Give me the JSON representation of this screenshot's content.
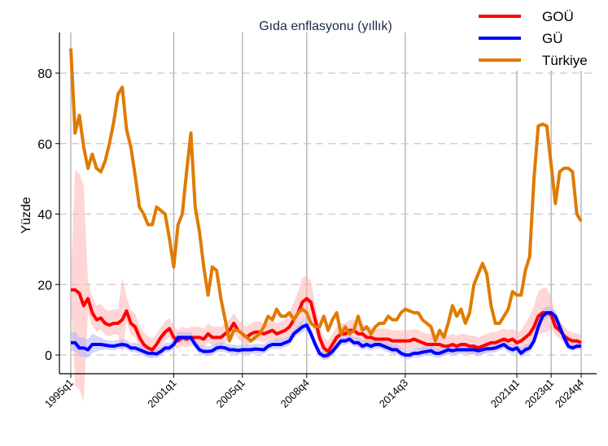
{
  "chart_data": {
    "type": "line",
    "title": "Gıda enflasyonu (yıllık)",
    "ylabel": "Yüzde",
    "xlabel": "",
    "x_start": "1995q1",
    "x_end": "2024q4",
    "n_quarters": 120,
    "ylim": [
      -6,
      92
    ],
    "yticks": [
      0,
      20,
      40,
      60,
      80
    ],
    "grid": "horizontal dashed",
    "legend_position": "top-right",
    "xticks": [
      {
        "label": "1995q1",
        "index": 0
      },
      {
        "label": "2001q1",
        "index": 24
      },
      {
        "label": "2005q1",
        "index": 40
      },
      {
        "label": "2008q4",
        "index": 55
      },
      {
        "label": "2014q3",
        "index": 78
      },
      {
        "label": "2021q1",
        "index": 104
      },
      {
        "label": "2023q1",
        "index": 112
      },
      {
        "label": "2024q4",
        "index": 119
      }
    ],
    "series": [
      {
        "name": "GOÜ",
        "color": "#ff0000",
        "band_color": "#ffb3b3",
        "values": [
          18.5,
          18.5,
          17.5,
          14,
          16,
          12,
          10,
          10.5,
          9,
          8.5,
          9,
          9,
          10,
          12.5,
          9,
          8,
          5,
          3,
          2,
          1.5,
          3,
          5,
          6.5,
          7.5,
          5,
          4,
          5,
          4.5,
          5,
          5,
          5,
          4.5,
          6,
          5,
          5,
          5,
          6,
          7,
          9,
          7,
          6,
          5,
          6,
          6.5,
          6.5,
          6,
          6.5,
          7,
          6,
          6.5,
          7,
          8,
          10,
          12,
          15,
          16,
          15,
          10,
          5,
          2,
          1,
          3,
          5,
          6,
          6,
          7,
          7,
          6,
          6,
          5,
          5,
          4.5,
          4.5,
          4.5,
          4.5,
          4,
          4,
          4,
          4,
          4,
          4.5,
          4,
          3.5,
          3,
          3,
          3,
          3,
          2.5,
          2.5,
          3,
          2.5,
          3,
          3,
          2.5,
          2.5,
          2,
          2.5,
          3,
          3.5,
          3.5,
          4,
          4.5,
          4,
          4.5,
          3.5,
          4,
          5,
          6,
          8,
          11,
          12,
          12,
          11.5,
          8,
          7,
          5.5,
          4.5,
          4,
          4,
          3.5
        ],
        "band_spread_knots": [
          [
            0,
            3
          ],
          [
            1,
            34
          ],
          [
            3,
            34
          ],
          [
            4,
            5
          ],
          [
            6,
            4
          ],
          [
            11,
            4
          ],
          [
            12,
            12
          ],
          [
            13,
            4
          ],
          [
            20,
            3
          ],
          [
            50,
            3
          ],
          [
            54,
            7
          ],
          [
            56,
            6
          ],
          [
            58,
            3
          ],
          [
            105,
            3
          ],
          [
            109,
            7
          ],
          [
            111,
            7
          ],
          [
            113,
            3
          ],
          [
            119,
            2
          ]
        ]
      },
      {
        "name": "GÜ",
        "color": "#0000ff",
        "band_color": "#b3b3ff",
        "values": [
          3.5,
          3.5,
          2,
          2,
          1.5,
          3,
          3,
          3,
          2.8,
          2.6,
          2.5,
          2.8,
          3,
          2.8,
          2,
          2,
          1.5,
          1,
          0.5,
          0.5,
          0.3,
          1,
          2,
          2,
          3,
          5,
          5,
          5,
          5,
          3,
          1.5,
          1,
          1,
          1.2,
          2,
          2.2,
          2,
          1.5,
          1.5,
          1.3,
          1.5,
          1.5,
          1.5,
          1.7,
          1.6,
          1.5,
          2.5,
          3,
          3,
          3,
          3.5,
          4,
          6,
          7,
          8,
          8.5,
          6,
          3,
          0.5,
          -0.3,
          0,
          1,
          2.5,
          4,
          4,
          4.5,
          3.5,
          3.5,
          2.5,
          3,
          2.5,
          3,
          3,
          2.5,
          2,
          1.5,
          1.5,
          0.5,
          0,
          0,
          0.5,
          0.5,
          0.8,
          1,
          1.2,
          0.5,
          0.5,
          1,
          1.5,
          1.2,
          1.5,
          1.5,
          1.5,
          1.5,
          1.5,
          1.2,
          1.5,
          1.8,
          1.8,
          2,
          2.5,
          3,
          2,
          1.5,
          2,
          0.5,
          1.5,
          2,
          4,
          8,
          11,
          12,
          12,
          11,
          8,
          5,
          2.5,
          2,
          2.5,
          2.5
        ],
        "band_spread_knots": [
          [
            0,
            3
          ],
          [
            5,
            3
          ],
          [
            8,
            1.5
          ],
          [
            52,
            1.5
          ],
          [
            55,
            2
          ],
          [
            57,
            1.5
          ],
          [
            107,
            1.5
          ],
          [
            110,
            2
          ],
          [
            113,
            1.5
          ],
          [
            119,
            1
          ]
        ]
      },
      {
        "name": "Türkiye",
        "color": "#e07b00",
        "values": [
          87,
          63,
          68,
          59,
          53,
          57,
          53,
          52,
          55,
          60,
          66,
          74,
          76,
          64,
          59,
          51,
          42,
          40,
          37,
          37,
          42,
          41,
          40,
          33,
          25,
          37,
          40,
          52,
          63,
          42,
          35,
          25,
          17,
          25,
          24,
          16,
          10,
          4,
          7,
          7,
          6,
          5,
          4,
          5,
          6,
          8,
          11,
          10,
          13,
          11,
          11,
          12,
          10,
          12,
          13,
          12,
          9,
          8,
          8,
          11,
          7,
          10,
          12,
          6,
          8,
          6,
          7,
          11,
          7,
          8,
          6,
          8,
          9,
          9,
          11,
          10,
          10,
          12,
          13,
          12.5,
          12,
          12,
          10,
          9,
          8,
          4,
          7,
          5,
          9,
          14,
          11,
          13,
          9,
          12,
          20,
          23,
          26,
          23,
          14,
          9,
          9,
          11,
          13,
          18,
          17,
          17,
          24,
          28,
          50,
          65,
          65.5,
          65,
          54,
          43,
          52,
          53,
          53,
          52,
          40,
          38
        ]
      }
    ]
  }
}
